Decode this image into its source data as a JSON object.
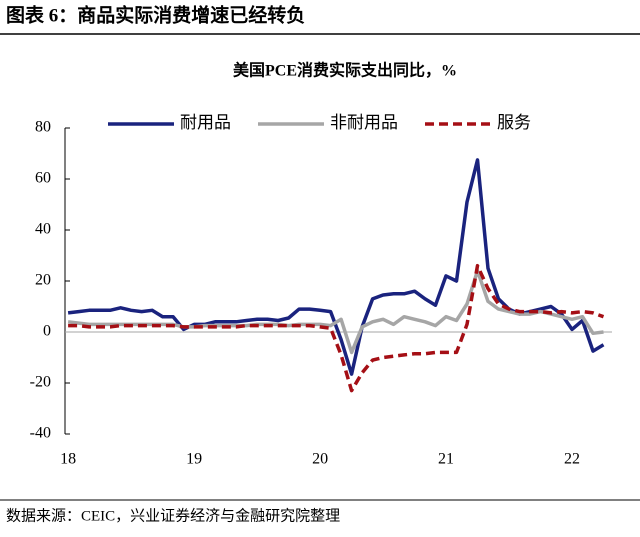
{
  "header": {
    "title": "图表 6：商品实际消费增速已经转负"
  },
  "chart_data": {
    "type": "line",
    "title": "美国PCE消费实际支出同比，%",
    "x": [
      0,
      1,
      2,
      3,
      4,
      5,
      6,
      7,
      8,
      9,
      10,
      11,
      12,
      13,
      14,
      15,
      16,
      17,
      18,
      19,
      20,
      21,
      22,
      23,
      24,
      25,
      26,
      27,
      28,
      29,
      30,
      31,
      32,
      33,
      34,
      35,
      36,
      37,
      38,
      39,
      40,
      41,
      42,
      43,
      44,
      45,
      46,
      47,
      48,
      49,
      50,
      51
    ],
    "series": [
      {
        "name": "耐用品",
        "color": "#1a237e",
        "dash": false,
        "values": [
          7.5,
          8,
          8.5,
          8.5,
          8.5,
          9.5,
          8.5,
          8,
          8.5,
          6,
          6,
          1,
          3,
          3,
          4,
          4,
          4,
          4.5,
          5,
          5,
          4.5,
          5.5,
          9,
          9,
          8.5,
          8,
          -3,
          -16.5,
          2,
          13,
          14.5,
          15,
          15,
          16,
          13,
          10.5,
          22,
          20,
          51,
          67.5,
          25,
          13,
          9,
          7,
          8,
          9,
          10,
          7,
          1,
          4.5,
          -7.5,
          -5
        ]
      },
      {
        "name": "非耐用品",
        "color": "#a6a6a6",
        "dash": false,
        "values": [
          4,
          3.5,
          3,
          3,
          3,
          3,
          3,
          3,
          3,
          3,
          3,
          2,
          2,
          2.5,
          2.5,
          2.5,
          2.5,
          2.5,
          3,
          3,
          3,
          2.5,
          3,
          3,
          3,
          2.5,
          5,
          -8,
          2,
          4,
          5,
          3,
          6,
          5,
          4,
          2.5,
          6,
          4.5,
          11,
          24,
          12,
          9,
          8,
          7,
          7,
          8,
          7,
          6,
          5,
          6,
          -0.5,
          0
        ]
      },
      {
        "name": "服务",
        "color": "#a50f15",
        "dash": true,
        "values": [
          2.5,
          2.5,
          2,
          2,
          2,
          2.5,
          2.5,
          2.5,
          2.5,
          2.5,
          2.5,
          2,
          2,
          2,
          2,
          2,
          2,
          2.5,
          2.5,
          2.5,
          2.5,
          2.5,
          2.5,
          2.5,
          2,
          1.5,
          -9,
          -23,
          -16,
          -11,
          -10,
          -9.5,
          -9,
          -8.5,
          -8.5,
          -8,
          -8,
          -8,
          3,
          26,
          17,
          11,
          9,
          8,
          8,
          8,
          7.5,
          8,
          7.5,
          8,
          7.5,
          6
        ]
      }
    ],
    "xlim": [
      -0.3,
      52
    ],
    "xticks": [
      {
        "value": 0,
        "label": "18"
      },
      {
        "value": 12,
        "label": "19"
      },
      {
        "value": 24,
        "label": "20"
      },
      {
        "value": 36,
        "label": "21"
      },
      {
        "value": 48,
        "label": "22"
      }
    ],
    "ylim": [
      -40,
      80
    ],
    "yticks": [
      -40,
      -20,
      0,
      20,
      40,
      60,
      80
    ],
    "legend": "top"
  },
  "footer": {
    "source": "数据来源：CEIC，兴业证券经济与金融研究院整理"
  }
}
